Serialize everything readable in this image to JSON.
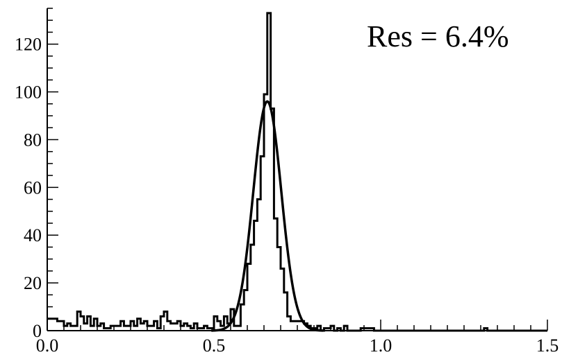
{
  "chart_data": {
    "type": "bar",
    "title": "",
    "xlabel": "",
    "ylabel": "",
    "xlim": [
      0.0,
      1.5
    ],
    "ylim": [
      0,
      135
    ],
    "grid": false,
    "x_tick_labels": [
      "0.0",
      "0.5",
      "1.0",
      "1.5"
    ],
    "x_tick_values": [
      0.0,
      0.5,
      1.0,
      1.5
    ],
    "y_tick_labels": [
      "0",
      "20",
      "40",
      "60",
      "80",
      "100",
      "120"
    ],
    "y_tick_values": [
      0,
      20,
      40,
      60,
      80,
      100,
      120
    ],
    "annotation": "Res = 6.4%",
    "histogram": {
      "bin_width": 0.01,
      "x_start": 0.0,
      "counts": [
        5,
        5,
        5,
        4,
        4,
        2,
        3,
        2,
        2,
        8,
        6,
        3,
        6,
        2,
        5,
        2,
        3,
        1,
        1,
        2,
        2,
        2,
        4,
        2,
        2,
        4,
        2,
        5,
        3,
        4,
        2,
        2,
        4,
        1,
        6,
        8,
        4,
        3,
        3,
        4,
        2,
        3,
        2,
        1,
        3,
        1,
        1,
        2,
        1,
        1,
        6,
        4,
        2,
        6,
        3,
        9,
        2,
        2,
        11,
        17,
        28,
        36,
        46,
        55,
        73,
        99,
        133,
        93,
        47,
        35,
        26,
        16,
        6,
        4,
        4,
        4,
        4,
        3,
        2,
        1,
        1,
        2,
        0,
        1,
        1,
        2,
        0,
        1,
        0,
        2,
        0,
        0,
        0,
        0,
        1,
        1,
        1,
        1,
        0,
        0,
        0,
        0,
        0,
        0,
        0,
        0,
        0,
        0,
        0,
        0,
        0,
        0,
        0,
        0,
        0,
        0,
        0,
        0,
        0,
        0,
        0,
        0,
        0,
        0,
        0,
        0,
        0,
        0,
        0,
        0,
        0,
        1,
        0,
        0,
        0,
        0,
        0,
        0,
        0,
        0,
        0,
        0,
        0,
        0,
        0,
        0,
        0,
        0,
        0,
        0
      ]
    },
    "fit": {
      "type": "gaussian",
      "amplitude": 96,
      "mean": 0.66,
      "sigma": 0.042
    },
    "line_color": "#000000"
  }
}
